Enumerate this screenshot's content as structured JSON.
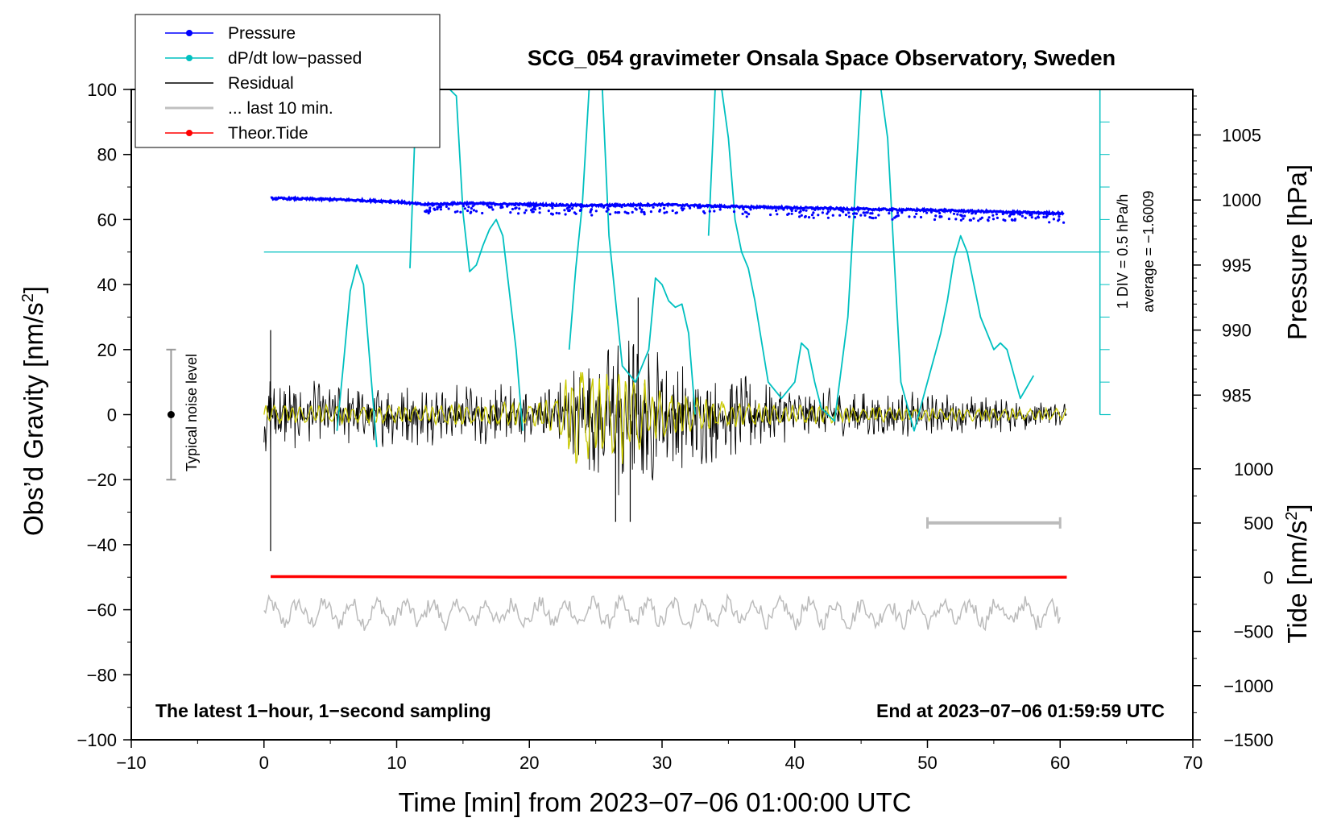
{
  "chart_data": {
    "type": "line",
    "title": "SCG_054 gravimeter Onsala Space Observatory, Sweden",
    "xlabel": "Time [min] from 2023−07−06 01:00:00 UTC",
    "ylabel_main": "Obs’d Gravity [nm/s",
    "ylabel_sup": "2",
    "ylabel_close": "]",
    "y2label_pressure": "Pressure [hPa]",
    "y2label_tide_main": "Tide [nm/s",
    "y2label_tide_sup": "2",
    "y2label_tide_close": "]",
    "xlim": [
      -10,
      70
    ],
    "ylim": [
      -100,
      100
    ],
    "x_ticks": [
      -10,
      0,
      10,
      20,
      30,
      40,
      50,
      60,
      70
    ],
    "x_tick_labels": [
      "−10",
      "0",
      "10",
      "20",
      "30",
      "40",
      "50",
      "60",
      "70"
    ],
    "y_ticks": [
      -100,
      -80,
      -60,
      -40,
      -20,
      0,
      20,
      40,
      60,
      80,
      100
    ],
    "y_tick_labels": [
      "−100",
      "−80",
      "−60",
      "−40",
      "−20",
      "0",
      "20",
      "40",
      "60",
      "80",
      "100"
    ],
    "pressure_axis": {
      "ticks": [
        985,
        990,
        995,
        1000,
        1005
      ],
      "tick_labels": [
        "985",
        "990",
        "995",
        "1000",
        "1005"
      ],
      "anchor_value": 1000,
      "anchor_gravity": 66,
      "hpa_per_gravity_unit": 0.25
    },
    "tide_axis": {
      "ticks": [
        -1500,
        -1000,
        -500,
        0,
        500,
        1000
      ],
      "tick_labels": [
        "−1500",
        "−1000",
        "−500",
        "0",
        "500",
        "1000"
      ],
      "zero_gravity": -50,
      "tide_per_gravity_unit": 30
    },
    "legend": [
      {
        "label": "Pressure",
        "color": "#0000ff",
        "marker": "dot"
      },
      {
        "label": "dP/dt low−passed",
        "color": "#00c0c0",
        "marker": "dot"
      },
      {
        "label": "Residual",
        "color": "#000000",
        "marker": "none"
      },
      {
        "label": "... last 10 min.",
        "color": "#c0c0c0",
        "marker": "none"
      },
      {
        "label": "Theor.Tide",
        "color": "#ff0000",
        "marker": "dot"
      }
    ],
    "series": [
      {
        "name": "Pressure",
        "color": "#0000ff",
        "x": [
          0.5,
          5,
          10,
          12,
          15,
          20,
          25,
          30,
          35,
          40,
          45,
          50,
          55,
          60
        ],
        "y": [
          66.5,
          66.2,
          65.5,
          64.6,
          65.0,
          64.6,
          64.3,
          64.6,
          64.0,
          63.6,
          63.2,
          62.9,
          62.4,
          61.9
        ]
      },
      {
        "name": "dP/dt low-passed",
        "color": "#00c0c0",
        "x": [
          0,
          5.5,
          6,
          6.5,
          7,
          7.5,
          8,
          8.5,
          9.5,
          10.5,
          11,
          11.5,
          13,
          14,
          14.5,
          15,
          15.5,
          16,
          16.5,
          17,
          17.5,
          18,
          19,
          19.5,
          20,
          21,
          22,
          23,
          23.5,
          24,
          24.5,
          25,
          25.5,
          26,
          27,
          28,
          29,
          29.5,
          30,
          30.5,
          31,
          31.5,
          32,
          32.5,
          33,
          33.5,
          34,
          34.5,
          35,
          35.5,
          36,
          36.5,
          37,
          38,
          39,
          40,
          40.5,
          41,
          41.5,
          42,
          43,
          44,
          45,
          45.5,
          46,
          46.5,
          47,
          48,
          49,
          50,
          51,
          51.5,
          52,
          52.5,
          53,
          54,
          55,
          55.5,
          56,
          57,
          58
        ],
        "y": [
          null,
          -5,
          16,
          38,
          46,
          40,
          15,
          -10,
          null,
          null,
          45,
          100,
          100,
          100,
          98,
          62,
          44,
          46,
          52,
          57,
          60,
          55,
          20,
          -5,
          null,
          null,
          null,
          20,
          45,
          65,
          100,
          100,
          100,
          55,
          15,
          10,
          20,
          42,
          40,
          35,
          33,
          34,
          25,
          0,
          null,
          55,
          100,
          100,
          85,
          60,
          50,
          45,
          35,
          10,
          5,
          10,
          22,
          20,
          10,
          2,
          -2,
          30,
          100,
          100,
          100,
          100,
          85,
          10,
          -5,
          10,
          25,
          35,
          48,
          55,
          50,
          30,
          20,
          22,
          20,
          5,
          12
        ]
      },
      {
        "name": "Theor.Tide",
        "color": "#ff0000",
        "x": [
          0.5,
          20,
          40,
          60.5
        ],
        "y": [
          -49.8,
          -50.0,
          -50.1,
          -50.0
        ]
      },
      {
        "name": "Residual",
        "color": "#000000",
        "x": [
          0,
          1,
          5,
          10,
          15,
          20,
          22,
          24,
          26,
          27,
          28,
          30,
          32,
          35,
          40,
          45,
          50,
          55,
          60
        ],
        "y_envelope": [
          15,
          12,
          10,
          10,
          10,
          10,
          12,
          18,
          25,
          30,
          28,
          22,
          18,
          14,
          9,
          8,
          7,
          6,
          5
        ],
        "extremes": [
          {
            "x": 0.5,
            "y": 26
          },
          {
            "x": 0.5,
            "y": -42
          },
          {
            "x": 26.5,
            "y": -33
          },
          {
            "x": 27.6,
            "y": -33
          },
          {
            "x": 28.2,
            "y": 36
          }
        ]
      },
      {
        "name": "Residual (filtered)",
        "color": "#cccc00",
        "x": [
          0,
          5,
          10,
          20,
          22,
          23,
          24,
          25,
          26,
          27,
          28,
          30,
          35,
          40,
          50,
          60
        ],
        "y_envelope": [
          3,
          3,
          3,
          4,
          6,
          14,
          18,
          12,
          14,
          16,
          13,
          7,
          4,
          3,
          2,
          2
        ]
      },
      {
        "name": "... last 10 min.",
        "color": "#c0c0c0",
        "baseline": -61,
        "amplitude": 5
      }
    ],
    "noise_bar": {
      "x": -7,
      "y_low": -20,
      "y_high": 20,
      "label": "Typical noise level"
    },
    "ten_min_bar": {
      "x_start": 50,
      "x_end": 60,
      "y": -33.3
    },
    "dpdt_scale": {
      "zero_y": 0,
      "ref_y": 50,
      "x_ref_start": 0,
      "x_ref_end": 63,
      "label_div": "1 DIV = 0.5 hPa/h",
      "label_avg": "average = −1.6009"
    },
    "annotations": {
      "left": "The latest 1−hour, 1−second sampling",
      "right": "End at 2023−07−06 01:59:59 UTC"
    }
  }
}
